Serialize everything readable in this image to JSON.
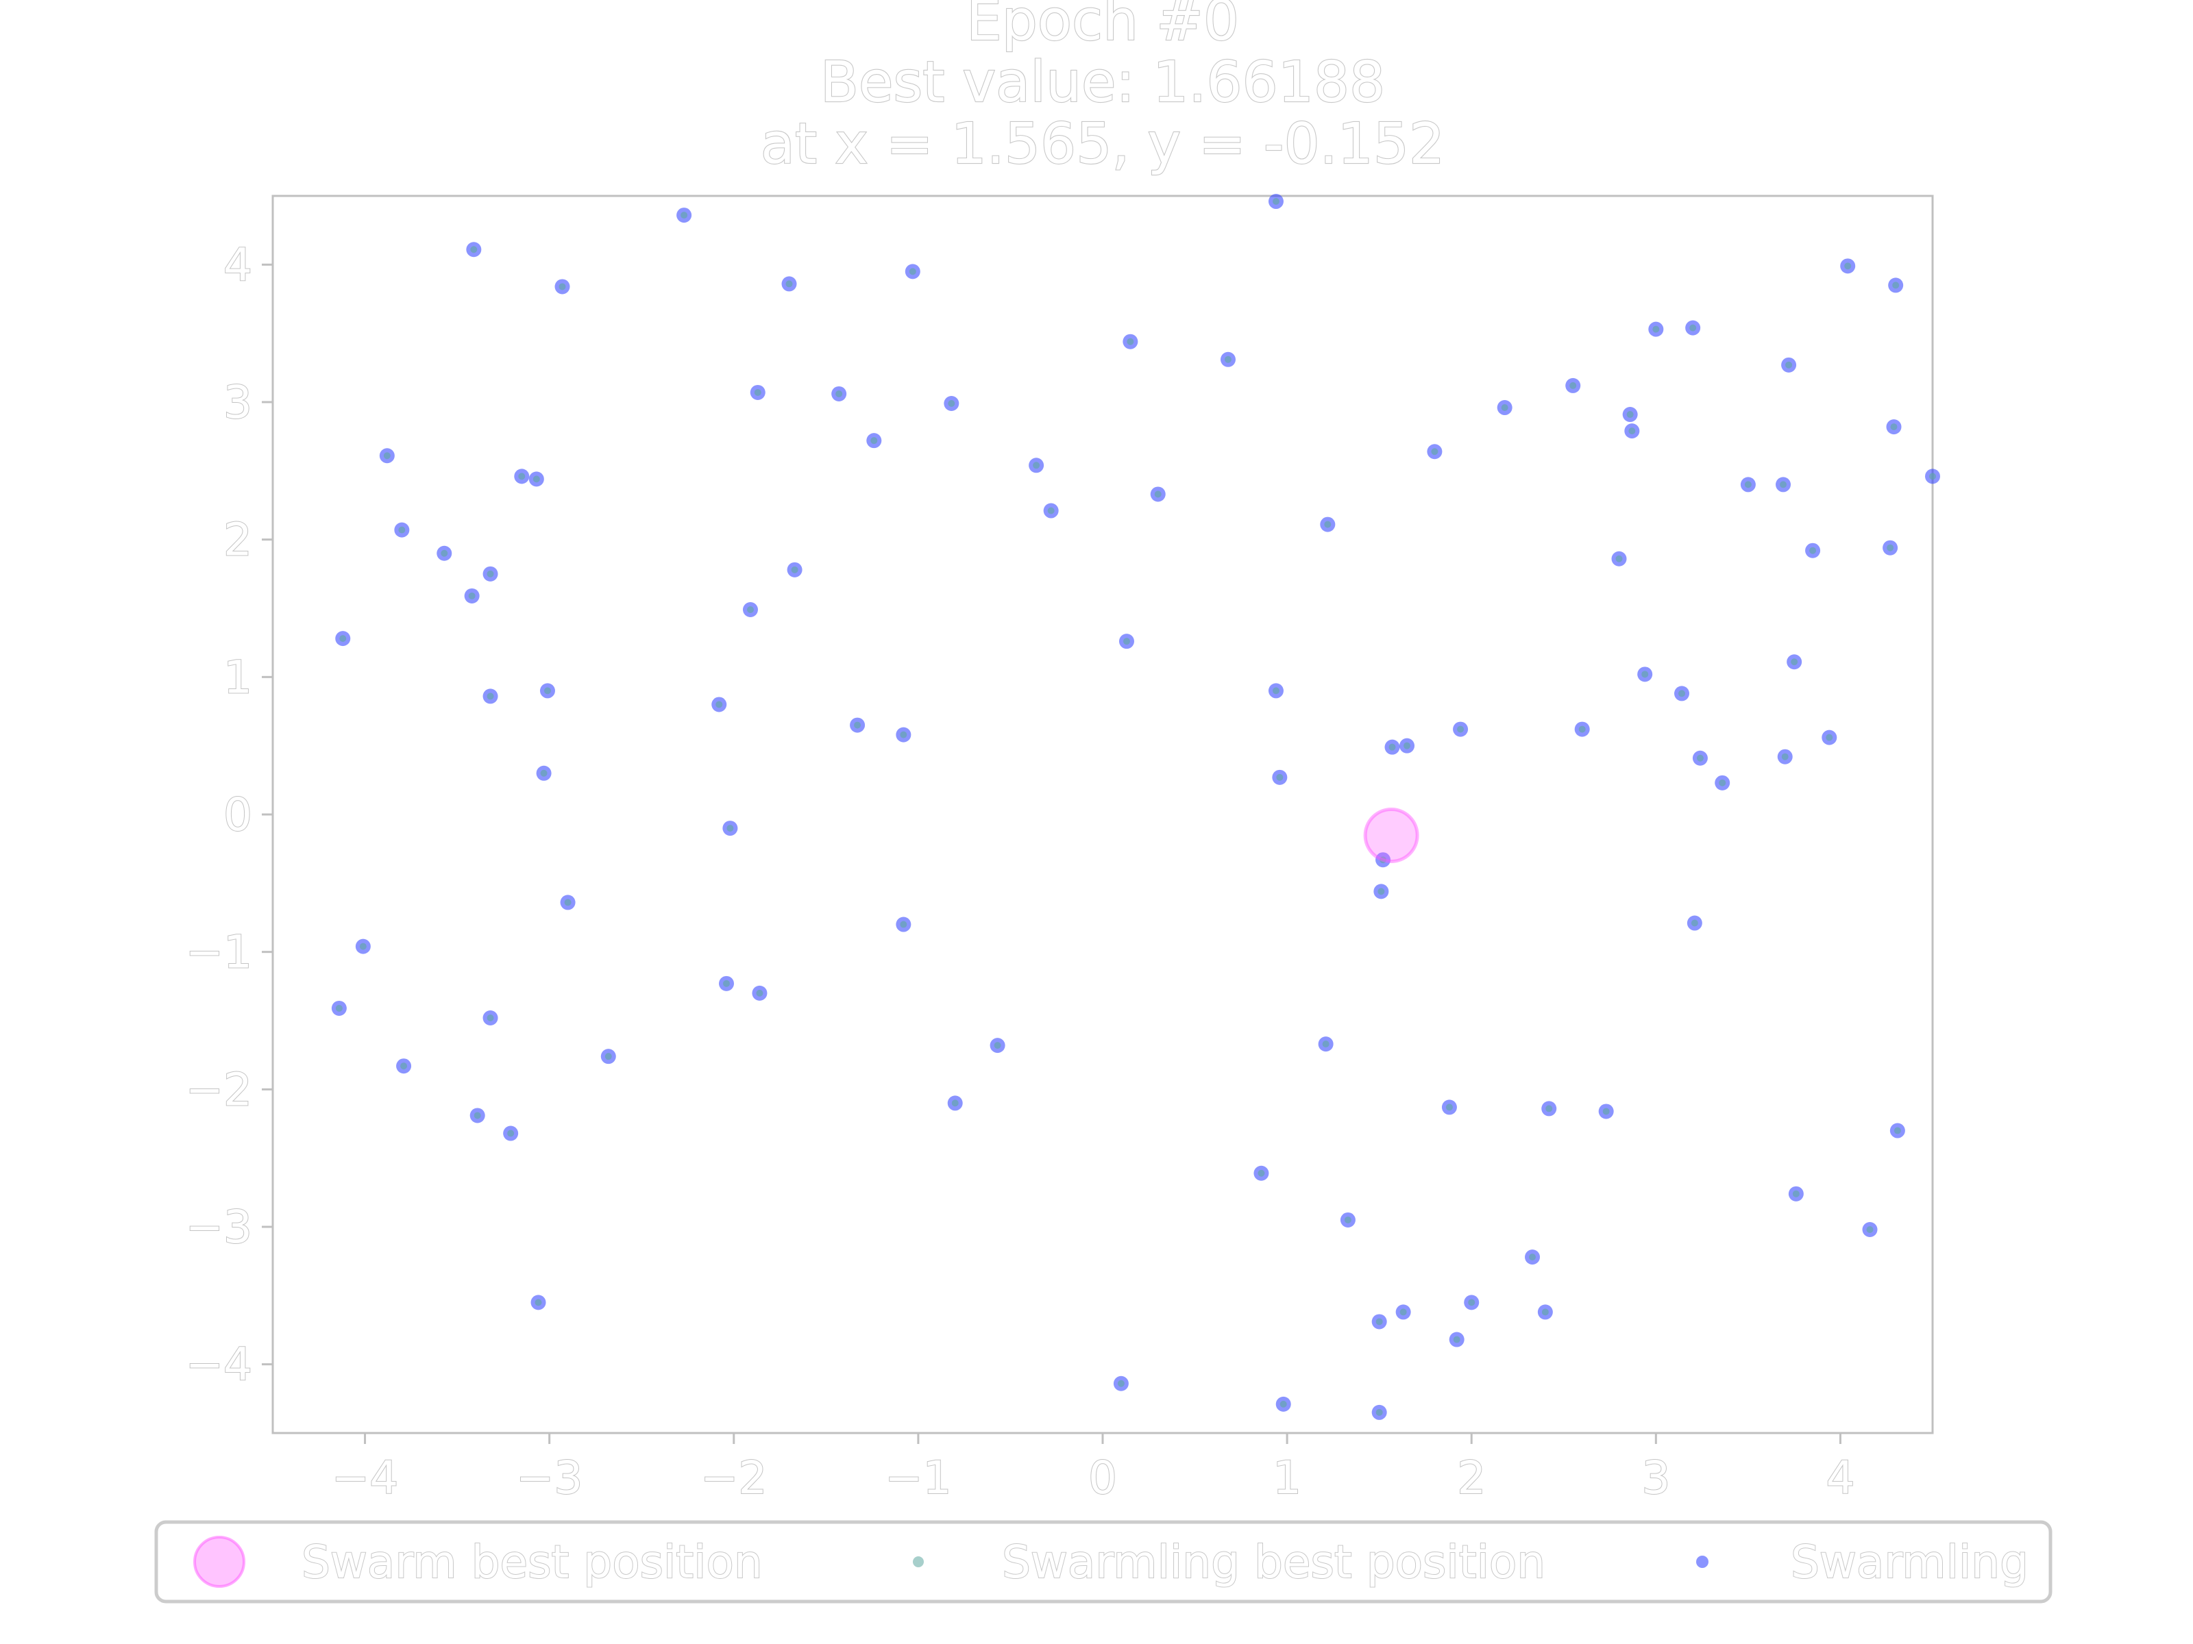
{
  "chart_data": {
    "type": "scatter",
    "title": [
      "Epoch #0",
      "Best value: 1.66188",
      "at x = 1.565, y = -0.152"
    ],
    "xlabel": "",
    "ylabel": "",
    "xlim": [
      -4.5,
      4.5
    ],
    "ylim": [
      -4.5,
      4.5
    ],
    "xticks": [
      -4,
      -3,
      -2,
      -1,
      0,
      1,
      2,
      3,
      4
    ],
    "yticks": [
      -4,
      -3,
      -2,
      -1,
      0,
      1,
      2,
      3,
      4
    ],
    "xtick_labels": [
      "−4",
      "−3",
      "−2",
      "−1",
      "0",
      "1",
      "2",
      "3",
      "4"
    ],
    "ytick_labels": [
      "−4",
      "−3",
      "−2",
      "−1",
      "0",
      "1",
      "2",
      "3",
      "4"
    ],
    "grid": false,
    "legend_position": "bottom",
    "colors": {
      "swarm_best": "#ff55ff",
      "swarmling_best": "#5fa8a0",
      "swarmling": "#2a3cff",
      "axes": "#c0c0c0"
    },
    "series": [
      {
        "name": "Swarm best position",
        "points": [
          [
            1.565,
            -0.152
          ]
        ]
      },
      {
        "name": "Swarmling best position",
        "points": []
      },
      {
        "name": "Swarmling",
        "points": [
          [
            -4.12,
            1.28
          ],
          [
            -4.14,
            -1.41
          ],
          [
            -4.01,
            -0.96
          ],
          [
            -3.88,
            2.61
          ],
          [
            -3.8,
            2.07
          ],
          [
            -3.79,
            -1.83
          ],
          [
            -3.57,
            1.9
          ],
          [
            -3.41,
            4.11
          ],
          [
            -3.42,
            1.59
          ],
          [
            -3.32,
            1.75
          ],
          [
            -3.32,
            0.86
          ],
          [
            -3.32,
            -1.48
          ],
          [
            -3.39,
            -2.19
          ],
          [
            -3.21,
            -2.32
          ],
          [
            -3.15,
            2.46
          ],
          [
            -3.07,
            2.44
          ],
          [
            -3.01,
            0.9
          ],
          [
            -3.03,
            0.3
          ],
          [
            -2.93,
            3.84
          ],
          [
            -2.9,
            -0.64
          ],
          [
            -3.06,
            -3.55
          ],
          [
            -2.68,
            -1.76
          ],
          [
            -2.27,
            4.36
          ],
          [
            -2.08,
            0.8
          ],
          [
            -2.02,
            -0.1
          ],
          [
            -2.04,
            -1.23
          ],
          [
            -1.91,
            1.49
          ],
          [
            -1.87,
            3.07
          ],
          [
            -1.86,
            -1.3
          ],
          [
            -1.7,
            3.86
          ],
          [
            -1.67,
            1.78
          ],
          [
            -1.43,
            3.06
          ],
          [
            -1.33,
            0.65
          ],
          [
            -1.24,
            2.72
          ],
          [
            -1.08,
            0.58
          ],
          [
            -1.08,
            -0.8
          ],
          [
            -1.03,
            3.95
          ],
          [
            -0.82,
            2.99
          ],
          [
            -0.8,
            -2.1
          ],
          [
            -0.57,
            -1.68
          ],
          [
            -0.36,
            2.54
          ],
          [
            -0.28,
            2.21
          ],
          [
            0.1,
            -4.14
          ],
          [
            0.13,
            1.26
          ],
          [
            0.15,
            3.44
          ],
          [
            0.3,
            2.33
          ],
          [
            0.68,
            3.31
          ],
          [
            0.86,
            -2.61
          ],
          [
            0.94,
            4.46
          ],
          [
            0.94,
            0.9
          ],
          [
            0.96,
            0.27
          ],
          [
            0.98,
            -4.29
          ],
          [
            1.21,
            -1.67
          ],
          [
            1.22,
            2.11
          ],
          [
            1.33,
            -2.95
          ],
          [
            1.5,
            -4.35
          ],
          [
            1.5,
            -3.69
          ],
          [
            1.51,
            -0.56
          ],
          [
            1.52,
            -0.33
          ],
          [
            1.57,
            0.49
          ],
          [
            1.63,
            -3.62
          ],
          [
            1.65,
            0.5
          ],
          [
            1.8,
            2.64
          ],
          [
            1.88,
            -2.13
          ],
          [
            1.92,
            -3.82
          ],
          [
            1.94,
            0.62
          ],
          [
            2.0,
            -3.55
          ],
          [
            2.18,
            2.96
          ],
          [
            2.33,
            -3.22
          ],
          [
            2.4,
            -3.62
          ],
          [
            2.42,
            -2.14
          ],
          [
            2.55,
            3.12
          ],
          [
            2.6,
            0.62
          ],
          [
            2.73,
            -2.16
          ],
          [
            2.8,
            1.86
          ],
          [
            2.86,
            2.91
          ],
          [
            2.87,
            2.79
          ],
          [
            2.94,
            1.02
          ],
          [
            3.0,
            3.53
          ],
          [
            3.14,
            0.88
          ],
          [
            3.2,
            3.54
          ],
          [
            3.21,
            -0.79
          ],
          [
            3.24,
            0.41
          ],
          [
            3.36,
            0.23
          ],
          [
            3.5,
            2.4
          ],
          [
            3.69,
            2.4
          ],
          [
            3.7,
            0.42
          ],
          [
            3.72,
            3.27
          ],
          [
            3.75,
            1.11
          ],
          [
            3.76,
            -2.76
          ],
          [
            3.85,
            1.92
          ],
          [
            3.94,
            0.56
          ],
          [
            4.04,
            3.99
          ],
          [
            4.16,
            -3.02
          ],
          [
            4.27,
            1.94
          ],
          [
            4.29,
            2.82
          ],
          [
            4.3,
            3.85
          ],
          [
            4.31,
            -2.3
          ],
          [
            4.5,
            2.46
          ]
        ]
      }
    ]
  }
}
